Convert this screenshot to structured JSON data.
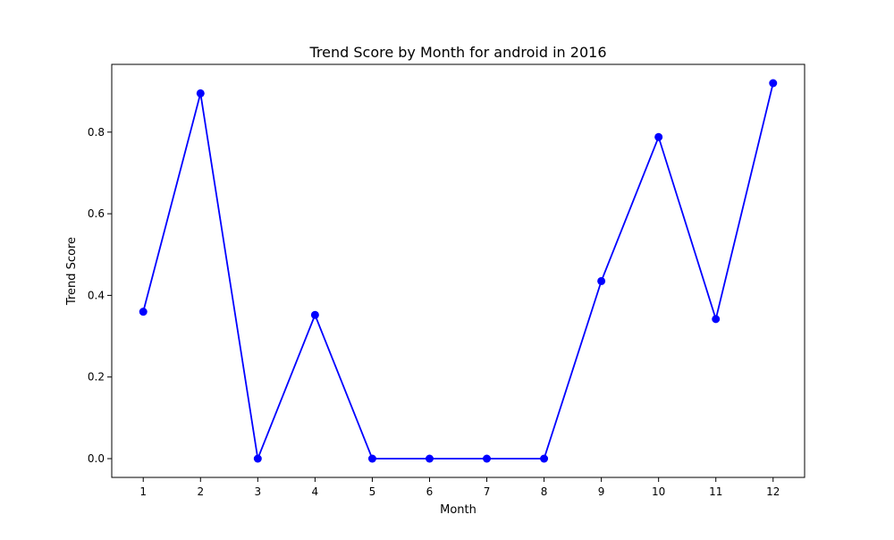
{
  "chart_data": {
    "type": "line",
    "title": "Trend Score by Month for android in 2016",
    "xlabel": "Month",
    "ylabel": "Trend Score",
    "x": [
      1,
      2,
      3,
      4,
      5,
      6,
      7,
      8,
      9,
      10,
      11,
      12
    ],
    "series": [
      {
        "values": [
          0.36,
          0.895,
          0.0,
          0.352,
          0.0,
          0.0,
          0.0,
          0.0,
          0.435,
          0.788,
          0.342,
          0.92
        ],
        "color": "#0000ff",
        "marker": "circle"
      }
    ],
    "xticks": [
      "1",
      "2",
      "3",
      "4",
      "5",
      "6",
      "7",
      "8",
      "9",
      "10",
      "11",
      "12"
    ],
    "yticks": [
      "0.0",
      "0.2",
      "0.4",
      "0.6",
      "0.8"
    ],
    "ytick_values": [
      0.0,
      0.2,
      0.4,
      0.6,
      0.8
    ],
    "xlim": [
      0.45,
      12.55
    ],
    "ylim": [
      -0.046,
      0.966
    ],
    "grid": false,
    "legend": "none"
  }
}
